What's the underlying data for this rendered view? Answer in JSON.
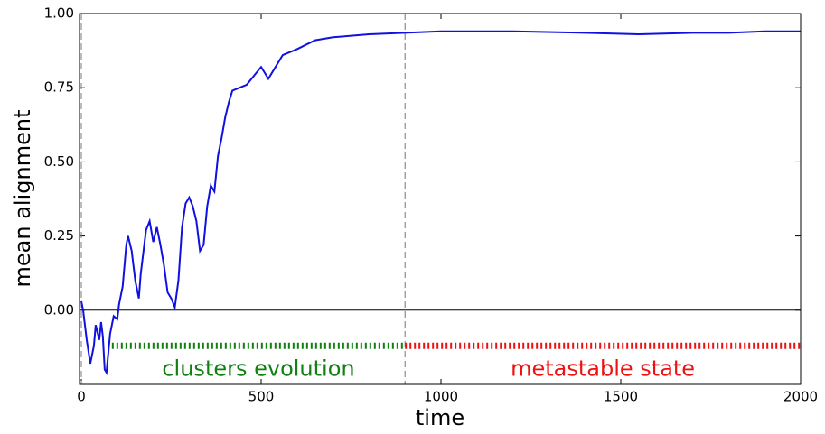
{
  "chart_data": {
    "type": "line",
    "xlabel": "time",
    "ylabel": "mean alignment",
    "xlim": [
      -5,
      2000
    ],
    "ylim": [
      -0.25,
      1.0
    ],
    "xticks": [
      0,
      500,
      1000,
      1500,
      2000
    ],
    "yticks": [
      {
        "value": 0,
        "label": "0.00"
      },
      {
        "value": 0.25,
        "label": "0.25"
      },
      {
        "value": 0.5,
        "label": "0.50"
      },
      {
        "value": 0.75,
        "label": "0.75"
      },
      {
        "value": 1.0,
        "label": "1.00"
      }
    ],
    "vlines": [
      0,
      900
    ],
    "hline": 0,
    "phases": [
      {
        "label": "clusters evolution",
        "color": "#108010",
        "start": 85,
        "end": 900,
        "y": -0.12
      },
      {
        "label": "metastable state",
        "color": "#ee1111",
        "start": 900,
        "end": 2000,
        "y": -0.12
      }
    ],
    "series": [
      {
        "color": "#1010e0",
        "x": [
          0,
          5,
          15,
          25,
          35,
          40,
          50,
          55,
          60,
          65,
          70,
          80,
          90,
          100,
          105,
          115,
          125,
          130,
          140,
          150,
          160,
          165,
          180,
          190,
          200,
          210,
          220,
          230,
          240,
          250,
          260,
          270,
          280,
          290,
          300,
          310,
          320,
          330,
          340,
          350,
          360,
          370,
          380,
          390,
          400,
          410,
          420,
          440,
          460,
          480,
          500,
          510,
          520,
          540,
          560,
          600,
          650,
          700,
          800,
          900,
          1000,
          1200,
          1400,
          1550,
          1700,
          1800,
          1900,
          2000
        ],
        "values": [
          0.03,
          0.0,
          -0.1,
          -0.18,
          -0.12,
          -0.05,
          -0.1,
          -0.04,
          -0.09,
          -0.2,
          -0.21,
          -0.08,
          -0.02,
          -0.03,
          0.02,
          0.08,
          0.22,
          0.25,
          0.2,
          0.1,
          0.04,
          0.12,
          0.27,
          0.3,
          0.23,
          0.28,
          0.22,
          0.15,
          0.06,
          0.04,
          0.01,
          0.1,
          0.28,
          0.36,
          0.38,
          0.35,
          0.3,
          0.2,
          0.22,
          0.35,
          0.42,
          0.4,
          0.52,
          0.58,
          0.65,
          0.7,
          0.74,
          0.75,
          0.76,
          0.79,
          0.82,
          0.8,
          0.78,
          0.82,
          0.86,
          0.88,
          0.91,
          0.92,
          0.93,
          0.935,
          0.94,
          0.94,
          0.935,
          0.93,
          0.935,
          0.935,
          0.94,
          0.94
        ]
      }
    ]
  }
}
